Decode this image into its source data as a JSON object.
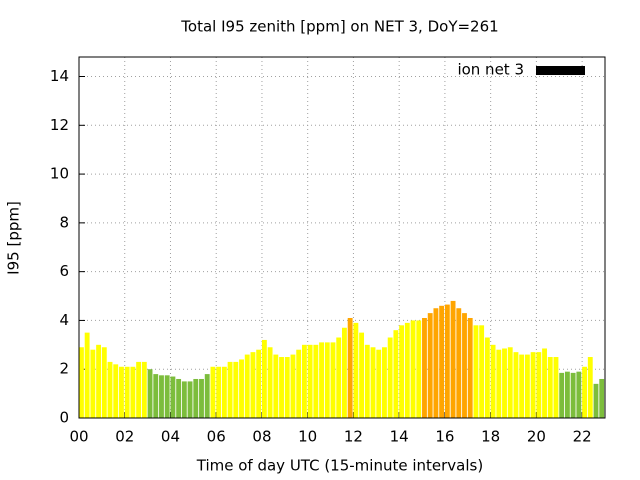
{
  "chart_data": {
    "type": "bar",
    "title": "Total I95 zenith [ppm] on NET 3, DoY=261",
    "x_label": "Time of day UTC (15-minute intervals)",
    "y_label": "I95 [ppm]",
    "x": [
      0,
      0.25,
      0.5,
      0.75,
      1,
      1.25,
      1.5,
      1.75,
      2,
      2.25,
      2.5,
      2.75,
      3,
      3.25,
      3.5,
      3.75,
      4,
      4.25,
      4.5,
      4.75,
      5,
      5.25,
      5.5,
      5.75,
      6,
      6.25,
      6.5,
      6.75,
      7,
      7.25,
      7.5,
      7.75,
      8,
      8.25,
      8.5,
      8.75,
      9,
      9.25,
      9.5,
      9.75,
      10,
      10.25,
      10.5,
      10.75,
      11,
      11.25,
      11.5,
      11.75,
      12,
      12.25,
      12.5,
      12.75,
      13,
      13.25,
      13.5,
      13.75,
      14,
      14.25,
      14.5,
      14.75,
      15,
      15.25,
      15.5,
      15.75,
      16,
      16.25,
      16.5,
      16.75,
      17,
      17.25,
      17.5,
      17.75,
      18,
      18.25,
      18.5,
      18.75,
      19,
      19.25,
      19.5,
      19.75,
      20,
      20.25,
      20.5,
      20.75,
      21,
      21.25,
      21.5,
      21.75,
      22,
      22.25,
      22.5,
      22.75
    ],
    "series": [
      {
        "name": "ion net 3",
        "color": "#000000",
        "values": [
          2.9,
          3.5,
          2.8,
          3.0,
          2.9,
          2.3,
          2.2,
          2.1,
          2.1,
          2.1,
          2.3,
          2.3,
          2.0,
          1.8,
          1.75,
          1.75,
          1.7,
          1.6,
          1.5,
          1.5,
          1.6,
          1.6,
          1.8,
          2.1,
          2.1,
          2.1,
          2.3,
          2.3,
          2.4,
          2.6,
          2.7,
          2.8,
          3.2,
          2.9,
          2.6,
          2.5,
          2.5,
          2.6,
          2.8,
          3.0,
          3.0,
          3.0,
          3.1,
          3.1,
          3.1,
          3.3,
          3.7,
          4.1,
          3.9,
          3.5,
          3.0,
          2.9,
          2.8,
          2.9,
          3.3,
          3.6,
          3.8,
          3.9,
          4.0,
          4.0,
          4.1,
          4.3,
          4.5,
          4.6,
          4.65,
          4.8,
          4.5,
          4.3,
          4.1,
          3.8,
          3.8,
          3.3,
          3.0,
          2.8,
          2.85,
          2.9,
          2.7,
          2.6,
          2.6,
          2.7,
          2.7,
          2.85,
          2.5,
          2.5,
          1.85,
          1.9,
          1.85,
          1.9,
          2.1,
          2.5,
          1.4,
          1.6
        ],
        "bar_colors": [
          "#ffff00",
          "#ffff00",
          "#ffff00",
          "#ffff00",
          "#ffff00",
          "#ffff00",
          "#ffff00",
          "#ffff00",
          "#ffff00",
          "#ffff00",
          "#ffff00",
          "#ffff00",
          "#7cbd3c",
          "#7cbd3c",
          "#7cbd3c",
          "#7cbd3c",
          "#7cbd3c",
          "#7cbd3c",
          "#7cbd3c",
          "#7cbd3c",
          "#7cbd3c",
          "#7cbd3c",
          "#7cbd3c",
          "#ffff00",
          "#ffff00",
          "#ffff00",
          "#ffff00",
          "#ffff00",
          "#ffff00",
          "#ffff00",
          "#ffff00",
          "#ffff00",
          "#ffff00",
          "#ffff00",
          "#ffff00",
          "#ffff00",
          "#ffff00",
          "#ffff00",
          "#ffff00",
          "#ffff00",
          "#ffff00",
          "#ffff00",
          "#ffff00",
          "#ffff00",
          "#ffff00",
          "#ffff00",
          "#ffff00",
          "#ffa500",
          "#ffff00",
          "#ffff00",
          "#ffff00",
          "#ffff00",
          "#ffff00",
          "#ffff00",
          "#ffff00",
          "#ffff00",
          "#ffff00",
          "#ffff00",
          "#ffff00",
          "#ffff00",
          "#ffa500",
          "#ffa500",
          "#ffa500",
          "#ffa500",
          "#ffa500",
          "#ffa500",
          "#ffa500",
          "#ffa500",
          "#ffa500",
          "#ffff00",
          "#ffff00",
          "#ffff00",
          "#ffff00",
          "#ffff00",
          "#ffff00",
          "#ffff00",
          "#ffff00",
          "#ffff00",
          "#ffff00",
          "#ffff00",
          "#ffff00",
          "#ffff00",
          "#ffff00",
          "#ffff00",
          "#7cbd3c",
          "#7cbd3c",
          "#7cbd3c",
          "#7cbd3c",
          "#ffff00",
          "#ffff00",
          "#7cbd3c",
          "#7cbd3c"
        ]
      }
    ],
    "xlim": [
      0,
      23
    ],
    "ylim": [
      0,
      14.8
    ],
    "xticks": [
      {
        "value": 0,
        "label": "00"
      },
      {
        "value": 2,
        "label": "02"
      },
      {
        "value": 4,
        "label": "04"
      },
      {
        "value": 6,
        "label": "06"
      },
      {
        "value": 8,
        "label": "08"
      },
      10,
      12,
      14,
      16,
      18,
      20,
      22
    ],
    "yticks": [
      0,
      2,
      4,
      6,
      8,
      10,
      12,
      14
    ],
    "bar_width": 0.25,
    "grid": true,
    "legend_position": "top-right"
  }
}
